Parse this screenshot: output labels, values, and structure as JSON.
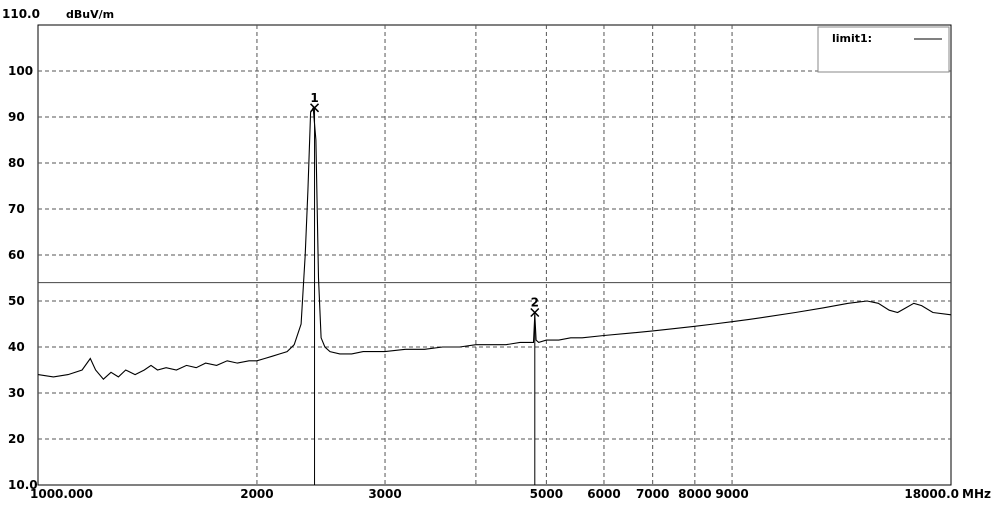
{
  "chart_data": {
    "type": "line",
    "ylabel_top": "110.0",
    "yunit": "dBuV/m",
    "xunit": "MHz",
    "xscale": "log",
    "xlim": [
      1000,
      18000
    ],
    "ylim": [
      10,
      110
    ],
    "grid": true,
    "y_ticks": [
      {
        "value": 100,
        "label": "100"
      },
      {
        "value": 90,
        "label": "90"
      },
      {
        "value": 80,
        "label": "80"
      },
      {
        "value": 70,
        "label": "70"
      },
      {
        "value": 60,
        "label": "60"
      },
      {
        "value": 50,
        "label": "50"
      },
      {
        "value": 40,
        "label": "40"
      },
      {
        "value": 30,
        "label": "30"
      },
      {
        "value": 20,
        "label": "20"
      },
      {
        "value": 10,
        "label": "10.0"
      }
    ],
    "x_ticks": [
      {
        "value": 1000,
        "label": "1000.000"
      },
      {
        "value": 2000,
        "label": "2000"
      },
      {
        "value": 3000,
        "label": "3000"
      },
      {
        "value": 5000,
        "label": "5000"
      },
      {
        "value": 6000,
        "label": "6000"
      },
      {
        "value": 7000,
        "label": "7000"
      },
      {
        "value": 8000,
        "label": "8000"
      },
      {
        "value": 9000,
        "label": "9000"
      },
      {
        "value": 18000,
        "label": "18000.0"
      }
    ],
    "x_grid": [
      1000,
      2000,
      3000,
      4000,
      5000,
      6000,
      7000,
      8000,
      9000,
      18000
    ],
    "legend": {
      "label": "limit1:",
      "position": "top-right"
    },
    "limit_line": {
      "name": "limit1",
      "value": 54
    },
    "series": [
      {
        "points": [
          [
            1000,
            34
          ],
          [
            1050,
            33.5
          ],
          [
            1100,
            34
          ],
          [
            1150,
            35
          ],
          [
            1180,
            37.5
          ],
          [
            1200,
            35
          ],
          [
            1230,
            33
          ],
          [
            1260,
            34.5
          ],
          [
            1290,
            33.5
          ],
          [
            1320,
            35
          ],
          [
            1360,
            34
          ],
          [
            1400,
            35
          ],
          [
            1430,
            36
          ],
          [
            1460,
            35
          ],
          [
            1500,
            35.5
          ],
          [
            1550,
            35
          ],
          [
            1600,
            36
          ],
          [
            1650,
            35.5
          ],
          [
            1700,
            36.5
          ],
          [
            1760,
            36
          ],
          [
            1820,
            37
          ],
          [
            1880,
            36.5
          ],
          [
            1950,
            37
          ],
          [
            2000,
            37
          ],
          [
            2050,
            37.5
          ],
          [
            2100,
            38
          ],
          [
            2150,
            38.5
          ],
          [
            2200,
            39
          ],
          [
            2250,
            40.5
          ],
          [
            2300,
            45
          ],
          [
            2330,
            60
          ],
          [
            2350,
            74
          ],
          [
            2370,
            91
          ],
          [
            2390,
            92
          ],
          [
            2410,
            85
          ],
          [
            2430,
            55
          ],
          [
            2450,
            42
          ],
          [
            2480,
            40
          ],
          [
            2520,
            39
          ],
          [
            2600,
            38.5
          ],
          [
            2700,
            38.5
          ],
          [
            2800,
            39
          ],
          [
            2900,
            39
          ],
          [
            3000,
            39
          ],
          [
            3200,
            39.5
          ],
          [
            3400,
            39.5
          ],
          [
            3600,
            40
          ],
          [
            3800,
            40
          ],
          [
            4000,
            40.5
          ],
          [
            4200,
            40.5
          ],
          [
            4400,
            40.5
          ],
          [
            4600,
            41
          ],
          [
            4750,
            41
          ],
          [
            4800,
            41
          ],
          [
            4820,
            47
          ],
          [
            4840,
            41.5
          ],
          [
            4880,
            41
          ],
          [
            5000,
            41.5
          ],
          [
            5200,
            41.5
          ],
          [
            5400,
            42
          ],
          [
            5600,
            42
          ],
          [
            6000,
            42.5
          ],
          [
            6500,
            43
          ],
          [
            7000,
            43.5
          ],
          [
            7500,
            44
          ],
          [
            8000,
            44.5
          ],
          [
            8500,
            45
          ],
          [
            9000,
            45.5
          ],
          [
            9500,
            46
          ],
          [
            10000,
            46.5
          ],
          [
            11000,
            47.5
          ],
          [
            12000,
            48.5
          ],
          [
            13000,
            49.5
          ],
          [
            13800,
            50
          ],
          [
            14300,
            49.5
          ],
          [
            14800,
            48
          ],
          [
            15200,
            47.5
          ],
          [
            15600,
            48.5
          ],
          [
            16000,
            49.5
          ],
          [
            16400,
            49
          ],
          [
            17000,
            47.5
          ],
          [
            18000,
            47
          ]
        ]
      }
    ],
    "markers": [
      {
        "label": "1",
        "x": 2400,
        "y": 92
      },
      {
        "label": "2",
        "x": 4820,
        "y": 47.5
      }
    ]
  }
}
